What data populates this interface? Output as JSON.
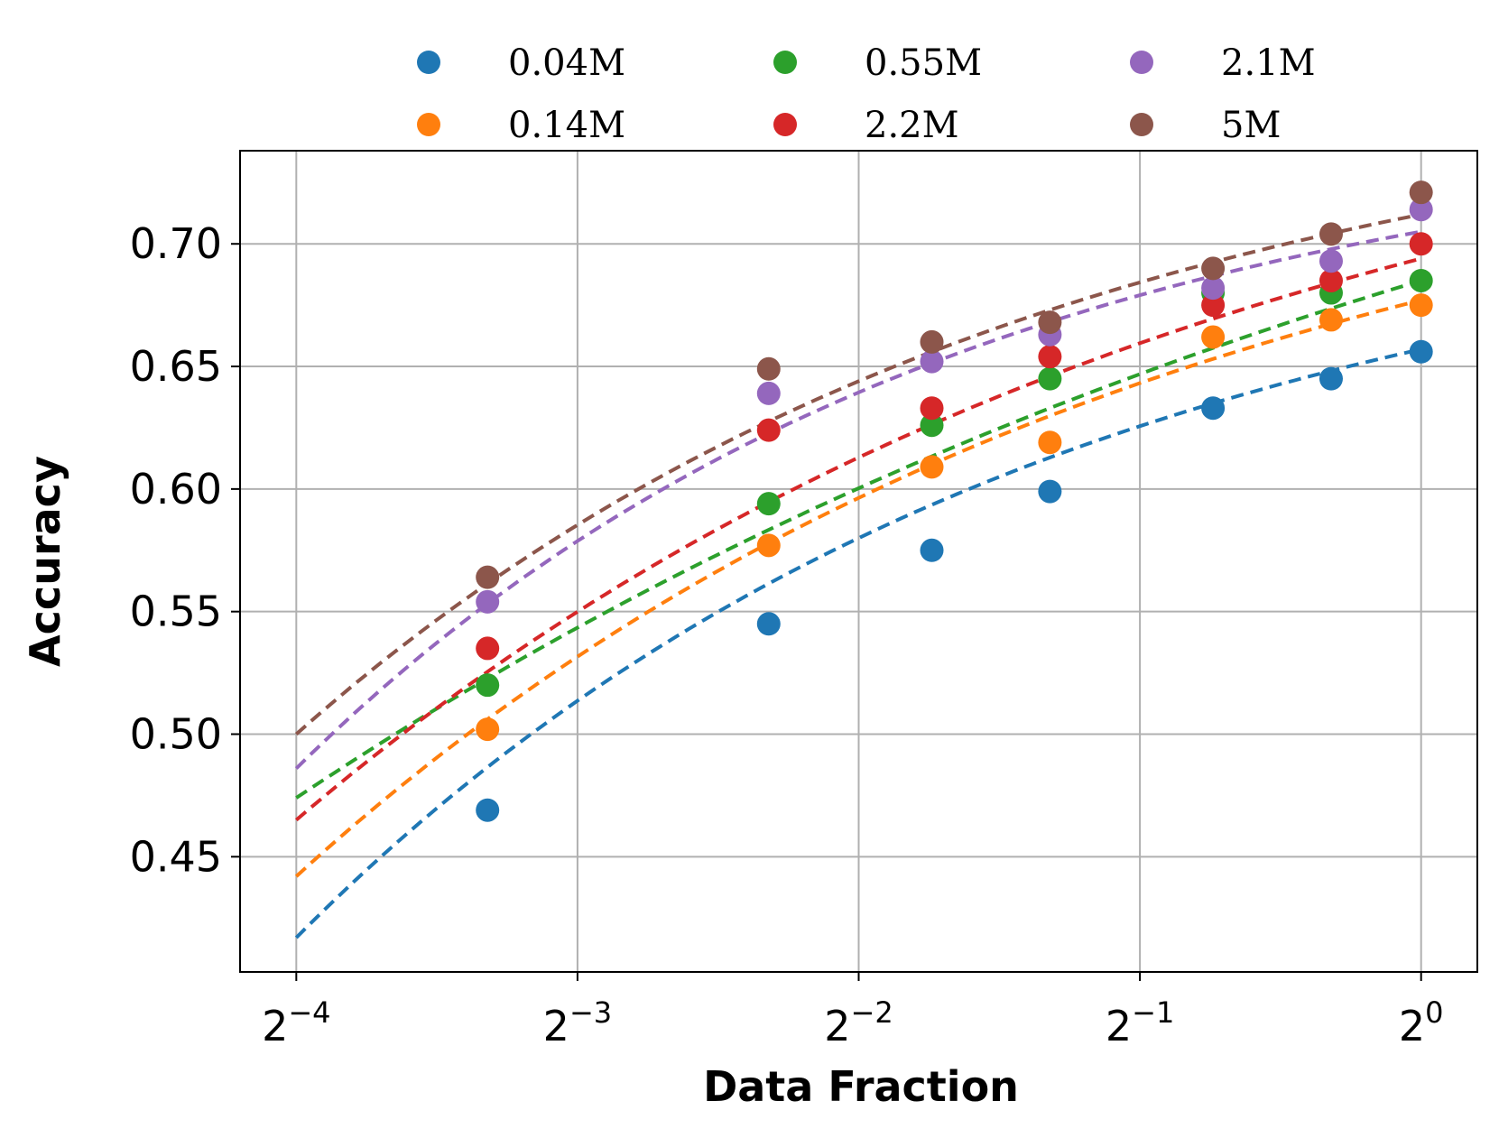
{
  "chart_data": {
    "type": "scatter",
    "title": "",
    "xlabel": "Data Fraction",
    "ylabel": "Accuracy",
    "xscale": "log2",
    "xlim_exp": [
      -4.2,
      0.2
    ],
    "ylim": [
      0.403,
      0.738
    ],
    "grid": true,
    "legend_position": "top",
    "legend_columns": 3,
    "xticks": [
      {
        "exp": -4,
        "base": "2",
        "sup": "−4"
      },
      {
        "exp": -3,
        "base": "2",
        "sup": "−3"
      },
      {
        "exp": -2,
        "base": "2",
        "sup": "−2"
      },
      {
        "exp": -1,
        "base": "2",
        "sup": "−1"
      },
      {
        "exp": 0,
        "base": "2",
        "sup": "0"
      }
    ],
    "yticks": [
      {
        "value": 0.45,
        "label": "0.45"
      },
      {
        "value": 0.5,
        "label": "0.50"
      },
      {
        "value": 0.55,
        "label": "0.55"
      },
      {
        "value": 0.6,
        "label": "0.60"
      },
      {
        "value": 0.65,
        "label": "0.65"
      },
      {
        "value": 0.7,
        "label": "0.70"
      }
    ],
    "x_exp": [
      -3.32,
      -2.32,
      -1.74,
      -1.32,
      -0.74,
      -0.32,
      0
    ],
    "series": [
      {
        "name": "0.04M",
        "color": "#1f77b4",
        "values": [
          0.469,
          0.545,
          0.575,
          0.599,
          0.633,
          0.645,
          0.656
        ],
        "fit": {
          "start": 0.417,
          "end": 0.657,
          "a": 1.5
        }
      },
      {
        "name": "0.14M",
        "color": "#ff7f0e",
        "values": [
          0.502,
          0.577,
          0.609,
          0.619,
          0.662,
          0.669,
          0.675
        ],
        "fit": {
          "start": 0.442,
          "end": 0.677,
          "a": 1.3
        }
      },
      {
        "name": "0.55M",
        "color": "#2ca02c",
        "values": [
          0.52,
          0.594,
          0.626,
          0.645,
          0.68,
          0.68,
          0.685
        ],
        "fit": {
          "start": 0.474,
          "end": 0.685,
          "a": 0.8
        }
      },
      {
        "name": "2.2M",
        "color": "#d62728",
        "values": [
          0.535,
          0.624,
          0.633,
          0.654,
          0.675,
          0.685,
          0.7
        ],
        "fit": {
          "start": 0.465,
          "end": 0.694,
          "a": 1.2
        }
      },
      {
        "name": "2.1M",
        "color": "#9467bd",
        "values": [
          0.554,
          0.639,
          0.652,
          0.663,
          0.682,
          0.693,
          0.714
        ],
        "fit": {
          "start": 0.486,
          "end": 0.705,
          "a": 1.7
        }
      },
      {
        "name": "5M",
        "color": "#8c564b",
        "values": [
          0.564,
          0.649,
          0.66,
          0.668,
          0.69,
          0.704,
          0.721
        ],
        "fit": {
          "start": 0.5,
          "end": 0.712,
          "a": 1.5
        }
      }
    ],
    "legend_order": [
      "0.04M",
      "0.55M",
      "2.1M",
      "0.14M",
      "2.2M",
      "5M"
    ]
  }
}
